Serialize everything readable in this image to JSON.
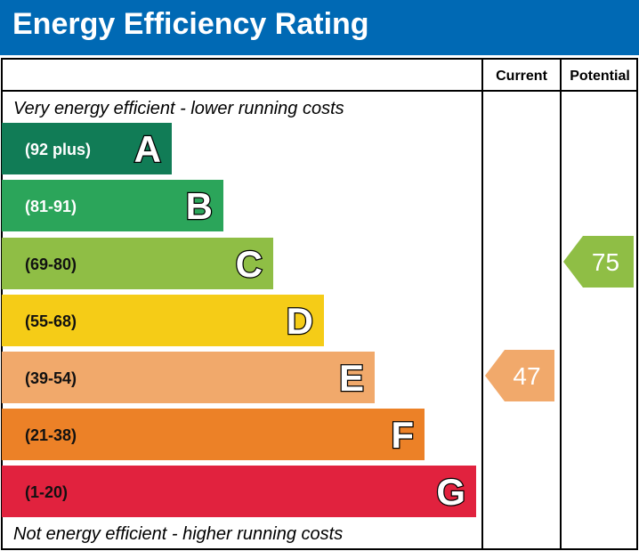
{
  "title": "Energy Efficiency Rating",
  "chart_data": {
    "type": "bar",
    "title": "Energy Efficiency Rating",
    "columns": [
      "Current",
      "Potential"
    ],
    "top_note": "Very energy efficient - lower running costs",
    "bottom_note": "Not energy efficient - higher running costs",
    "bands": [
      {
        "letter": "A",
        "range": "(92 plus)",
        "color": "#117c56"
      },
      {
        "letter": "B",
        "range": "(81-91)",
        "color": "#2ba55a"
      },
      {
        "letter": "C",
        "range": "(69-80)",
        "color": "#8fbe45"
      },
      {
        "letter": "D",
        "range": "(55-68)",
        "color": "#f5cc17"
      },
      {
        "letter": "E",
        "range": "(39-54)",
        "color": "#f1a96b"
      },
      {
        "letter": "F",
        "range": "(21-38)",
        "color": "#ec8127"
      },
      {
        "letter": "G",
        "range": "(1-20)",
        "color": "#e1223e"
      }
    ],
    "current": {
      "value": 47,
      "band": "E",
      "color": "#f1a96b"
    },
    "potential": {
      "value": 75,
      "band": "C",
      "color": "#8fbe45"
    }
  }
}
